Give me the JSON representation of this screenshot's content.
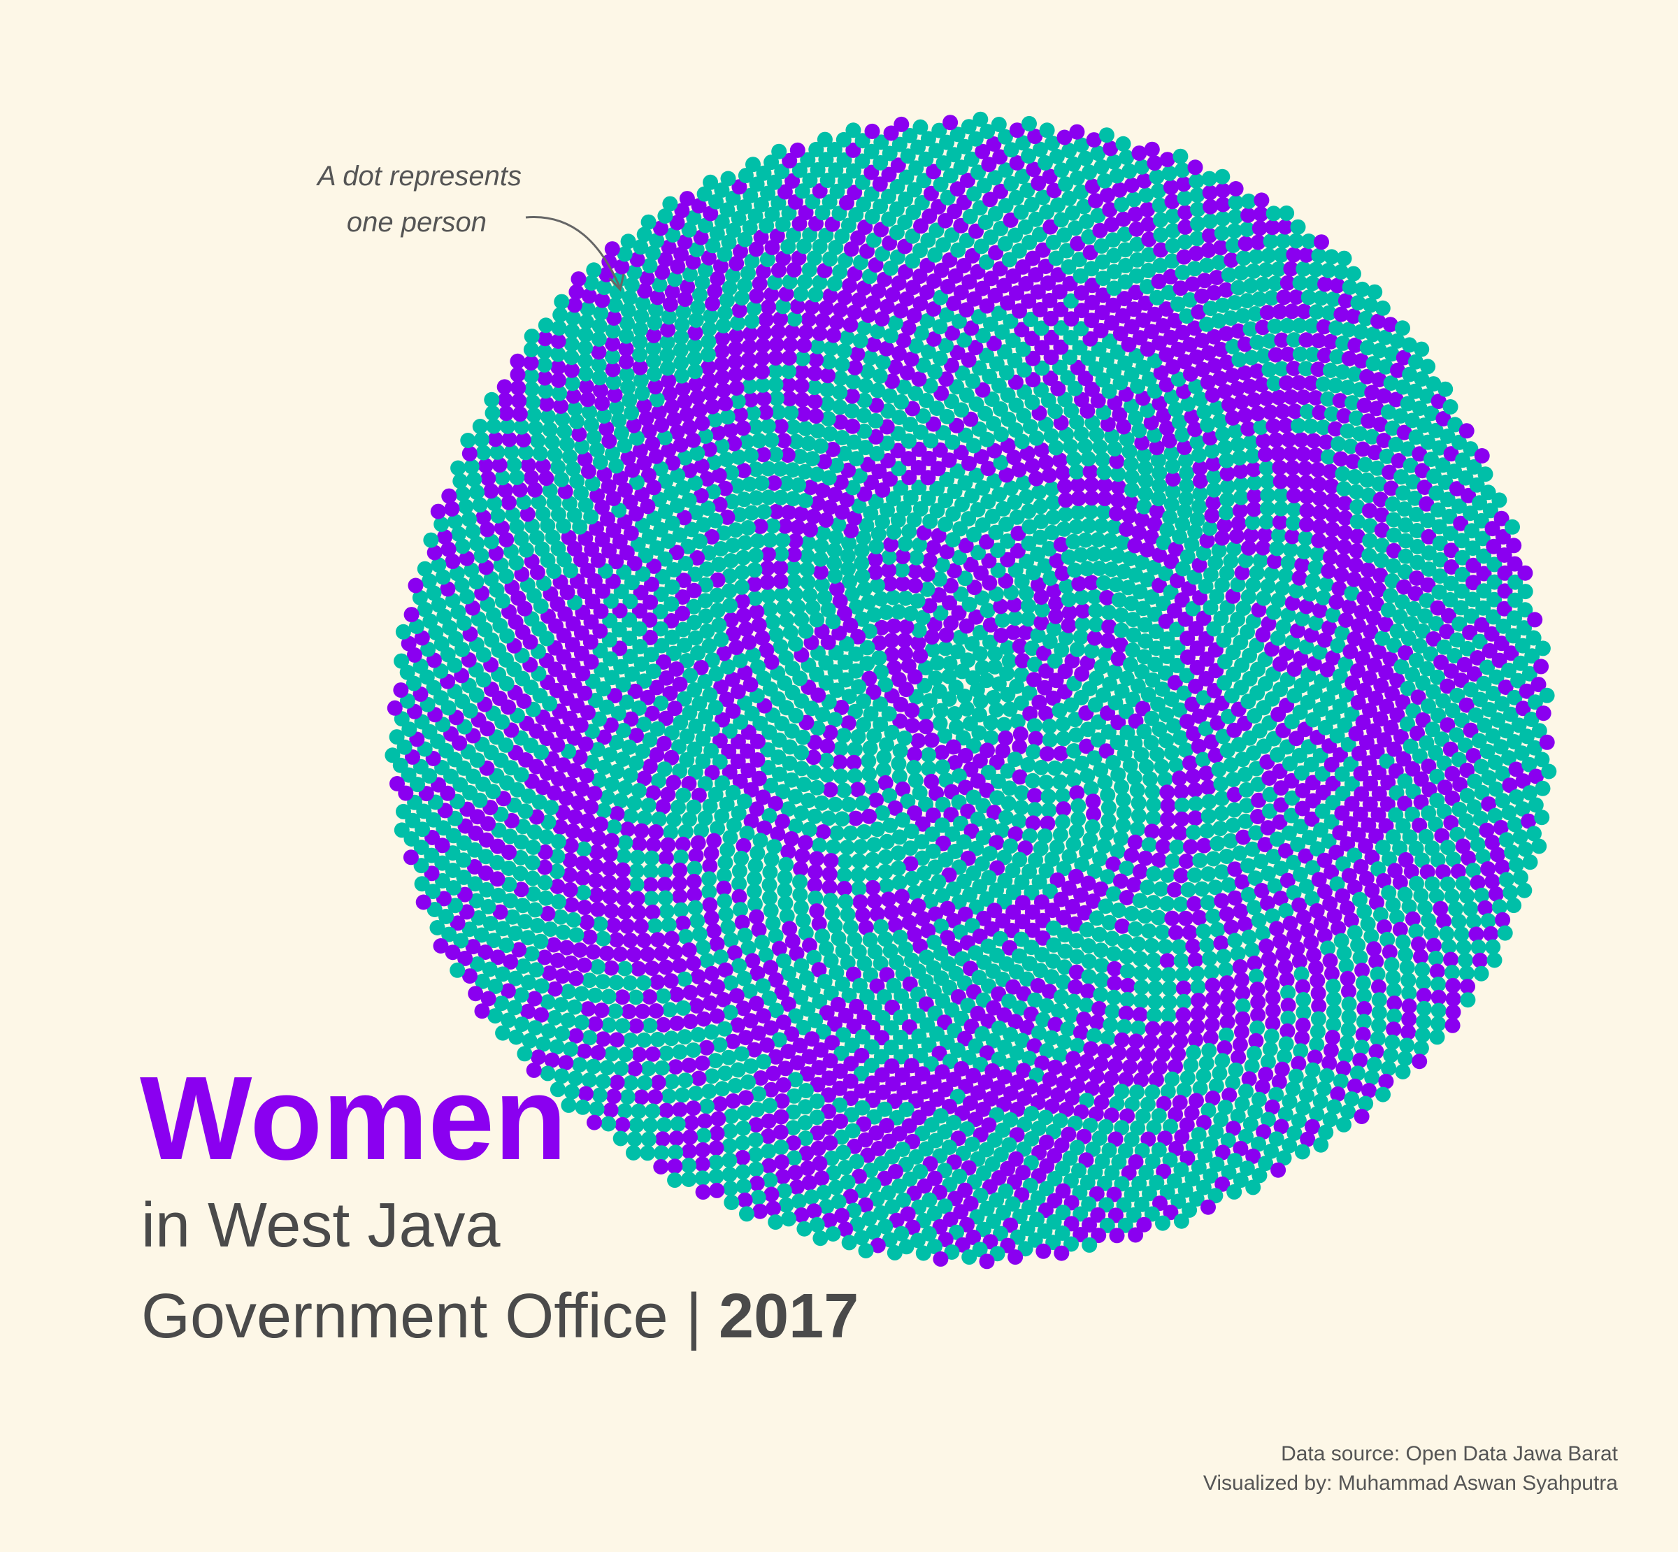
{
  "annotation": {
    "lines": [
      "A dot represents",
      "one person"
    ]
  },
  "title": {
    "main": "Women",
    "line1": "in West Java",
    "line2": "Government Office |",
    "year": "2017"
  },
  "credits": [
    "Data source: Open Data Jawa Barat",
    "Visualized by: Muhammad Aswan Syahputra"
  ]
}
